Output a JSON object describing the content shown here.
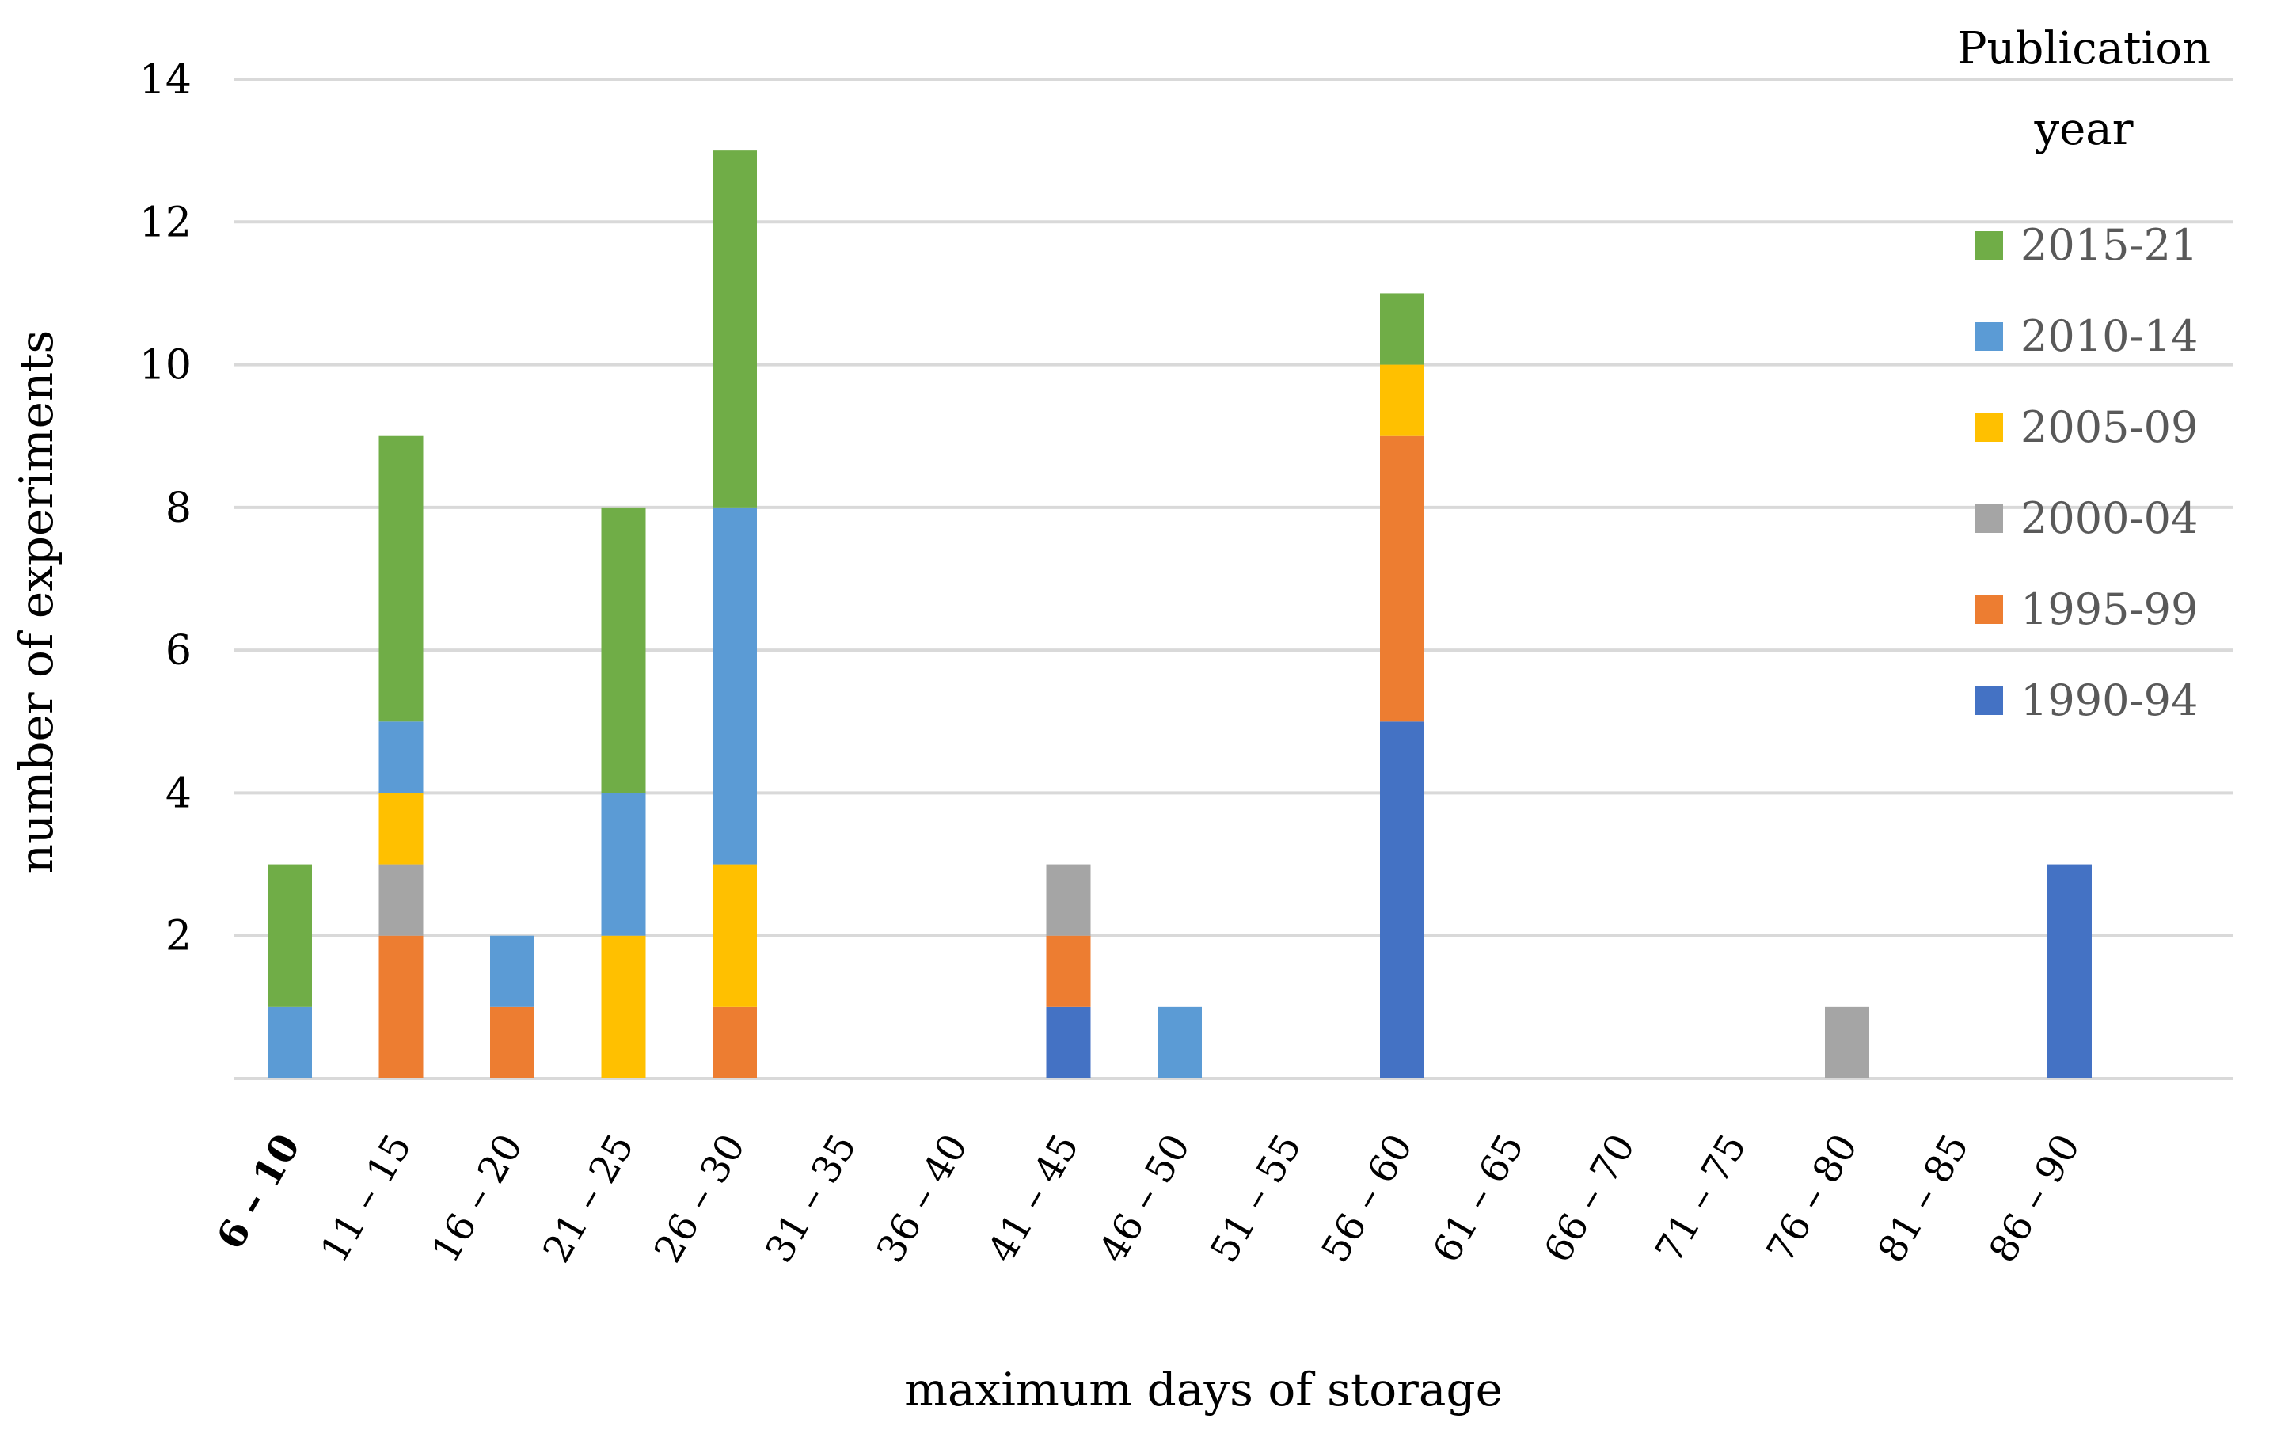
{
  "chart_data": {
    "type": "bar",
    "stacked": true,
    "title": "",
    "xlabel": "maximum days of storage",
    "ylabel": "number of experiments",
    "ylim": [
      0,
      14
    ],
    "yticks": [
      2,
      4,
      6,
      8,
      10,
      12,
      14
    ],
    "grid": true,
    "legend_title": "Publication year",
    "legend_title_lines": [
      "Publication",
      "year"
    ],
    "legend_position": "right",
    "categories": [
      "6 – 10",
      "11 – 15",
      "16 – 20",
      "21 – 25",
      "26 – 30",
      "31 – 35",
      "36 – 40",
      "41 – 45",
      "46 – 50",
      "51 – 55",
      "56 – 60",
      "61 – 65",
      "66 – 70",
      "71 – 75",
      "76 – 80",
      "81 – 85",
      "86 – 90"
    ],
    "bold_categories": [
      "6 – 10"
    ],
    "series": [
      {
        "name": "1990-94",
        "color": "#4472c4",
        "values": [
          0,
          0,
          0,
          0,
          0,
          0,
          0,
          1,
          0,
          0,
          5,
          0,
          0,
          0,
          0,
          0,
          3
        ]
      },
      {
        "name": "1995-99",
        "color": "#ed7d31",
        "values": [
          0,
          2,
          1,
          0,
          1,
          0,
          0,
          1,
          0,
          0,
          4,
          0,
          0,
          0,
          0,
          0,
          0
        ]
      },
      {
        "name": "2000-04",
        "color": "#a5a5a5",
        "values": [
          0,
          1,
          0,
          0,
          0,
          0,
          0,
          1,
          0,
          0,
          0,
          0,
          0,
          0,
          1,
          0,
          0
        ]
      },
      {
        "name": "2005-09",
        "color": "#ffc000",
        "values": [
          0,
          1,
          0,
          2,
          2,
          0,
          0,
          0,
          0,
          0,
          1,
          0,
          0,
          0,
          0,
          0,
          0
        ]
      },
      {
        "name": "2010-14",
        "color": "#5b9bd5",
        "values": [
          1,
          1,
          1,
          2,
          5,
          0,
          0,
          0,
          1,
          0,
          0,
          0,
          0,
          0,
          0,
          0,
          0
        ]
      },
      {
        "name": "2015-21",
        "color": "#70ad47",
        "values": [
          2,
          4,
          0,
          4,
          5,
          0,
          0,
          0,
          0,
          0,
          1,
          0,
          0,
          0,
          0,
          0,
          0
        ]
      }
    ]
  }
}
